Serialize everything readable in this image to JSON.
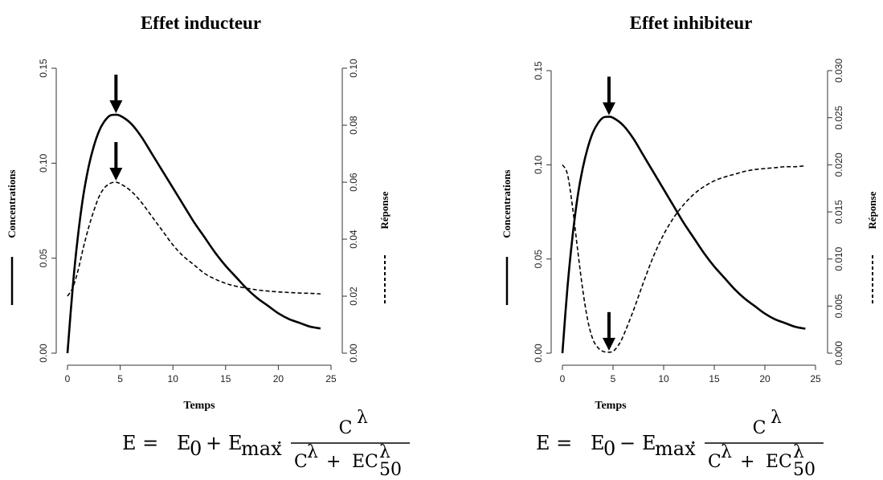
{
  "chart_data": [
    {
      "type": "line",
      "title": "Effet inducteur",
      "xlabel": "Temps",
      "ylabel_left": "Concentrations",
      "ylabel_right": "Réponse",
      "xlim": [
        0,
        25
      ],
      "ylim_left": [
        0,
        0.15
      ],
      "ylim_right": [
        0,
        0.1
      ],
      "x_ticks": [
        "0",
        "5",
        "10",
        "15",
        "20",
        "25"
      ],
      "y_left_ticks": [
        "0.00",
        "0.05",
        "0.10",
        "0.15"
      ],
      "y_right_ticks": [
        "0.00",
        "0.02",
        "0.04",
        "0.06",
        "0.08",
        "0.10"
      ],
      "grid": false,
      "series": [
        {
          "name": "Concentrations",
          "axis": "left",
          "style": "solid",
          "x": [
            0,
            0.5,
            1,
            1.5,
            2,
            2.5,
            3,
            3.5,
            4,
            4.5,
            5,
            6,
            7,
            8,
            9,
            10,
            11,
            12,
            13,
            14,
            15,
            16,
            17,
            18,
            19,
            20,
            21,
            22,
            23,
            24
          ],
          "y": [
            0,
            0.035,
            0.062,
            0.083,
            0.098,
            0.109,
            0.117,
            0.122,
            0.125,
            0.1255,
            0.125,
            0.121,
            0.114,
            0.105,
            0.096,
            0.087,
            0.078,
            0.069,
            0.061,
            0.053,
            0.046,
            0.04,
            0.034,
            0.029,
            0.025,
            0.021,
            0.018,
            0.016,
            0.014,
            0.013
          ]
        },
        {
          "name": "Réponse",
          "axis": "right",
          "style": "dashed",
          "x": [
            0,
            0.5,
            1,
            1.5,
            2,
            2.5,
            3,
            3.5,
            4,
            4.5,
            5,
            6,
            7,
            8,
            9,
            10,
            11,
            12,
            13,
            14,
            15,
            16,
            17,
            18,
            19,
            20,
            21,
            22,
            23,
            24
          ],
          "y": [
            0.02,
            0.023,
            0.029,
            0.037,
            0.044,
            0.05,
            0.055,
            0.058,
            0.0595,
            0.06,
            0.0595,
            0.057,
            0.053,
            0.048,
            0.043,
            0.038,
            0.034,
            0.031,
            0.028,
            0.026,
            0.0245,
            0.0235,
            0.0228,
            0.0222,
            0.0218,
            0.0215,
            0.0213,
            0.0211,
            0.021,
            0.0208
          ]
        }
      ],
      "arrows": [
        {
          "series": "Concentrations",
          "x": 4.6,
          "y": 0.1255
        },
        {
          "series": "Réponse",
          "x": 4.6,
          "y": 0.06
        }
      ]
    },
    {
      "type": "line",
      "title": "Effet inhibiteur",
      "xlabel": "Temps",
      "ylabel_left": "Concentrations",
      "ylabel_right": "Réponse",
      "xlim": [
        0,
        25
      ],
      "ylim_left": [
        0,
        0.15
      ],
      "ylim_right": [
        0,
        0.03
      ],
      "x_ticks": [
        "0",
        "5",
        "10",
        "15",
        "20",
        "25"
      ],
      "y_left_ticks": [
        "0.00",
        "0.05",
        "0.10",
        "0.15"
      ],
      "y_right_ticks": [
        "0.000",
        "0.005",
        "0.010",
        "0.015",
        "0.020",
        "0.025",
        "0.030"
      ],
      "grid": false,
      "series": [
        {
          "name": "Concentrations",
          "axis": "left",
          "style": "solid",
          "x": [
            0,
            0.5,
            1,
            1.5,
            2,
            2.5,
            3,
            3.5,
            4,
            4.5,
            5,
            6,
            7,
            8,
            9,
            10,
            11,
            12,
            13,
            14,
            15,
            16,
            17,
            18,
            19,
            20,
            21,
            22,
            23,
            24
          ],
          "y": [
            0,
            0.035,
            0.062,
            0.083,
            0.098,
            0.109,
            0.117,
            0.122,
            0.125,
            0.1255,
            0.125,
            0.121,
            0.114,
            0.105,
            0.096,
            0.087,
            0.078,
            0.069,
            0.061,
            0.053,
            0.046,
            0.04,
            0.034,
            0.029,
            0.025,
            0.021,
            0.018,
            0.016,
            0.014,
            0.013
          ]
        },
        {
          "name": "Réponse",
          "axis": "right",
          "style": "dashed",
          "x": [
            0,
            0.5,
            1,
            1.5,
            2,
            2.5,
            3,
            3.5,
            4,
            4.5,
            5,
            5.5,
            6,
            7,
            8,
            9,
            10,
            11,
            12,
            13,
            14,
            15,
            16,
            17,
            18,
            19,
            20,
            21,
            22,
            23,
            24
          ],
          "y": [
            0.02,
            0.019,
            0.0155,
            0.011,
            0.0068,
            0.0035,
            0.0015,
            0.0006,
            0.0002,
            0.0001,
            0.0002,
            0.0008,
            0.0018,
            0.0045,
            0.0075,
            0.0103,
            0.0126,
            0.0144,
            0.0158,
            0.0169,
            0.0177,
            0.0183,
            0.0187,
            0.019,
            0.0193,
            0.0195,
            0.0196,
            0.0197,
            0.0198,
            0.0198,
            0.0199
          ]
        }
      ],
      "arrows": [
        {
          "series": "Concentrations",
          "x": 4.6,
          "y": 0.1255
        },
        {
          "series": "Réponse",
          "x": 4.6,
          "y": 0.0001
        }
      ]
    }
  ],
  "formulas": [
    {
      "lhs": "E = ",
      "e0": "E",
      "e0_sub": "0",
      "op": "+",
      "emax": "E",
      "emax_sub": "max",
      "dot": "·",
      "num": "C",
      "num_sup": "λ",
      "den_c": "C",
      "den_c_sup": "λ",
      "den_plus": "+",
      "den_ec": "EC",
      "den_ec_sup": "λ",
      "den_ec_sub": "50"
    },
    {
      "lhs": "E = ",
      "e0": "E",
      "e0_sub": "0",
      "op": "−",
      "emax": "E",
      "emax_sub": "max",
      "dot": "·",
      "num": "C",
      "num_sup": "λ",
      "den_c": "C",
      "den_c_sup": "λ",
      "den_plus": "+",
      "den_ec": "EC",
      "den_ec_sup": "λ",
      "den_ec_sub": "50"
    }
  ]
}
